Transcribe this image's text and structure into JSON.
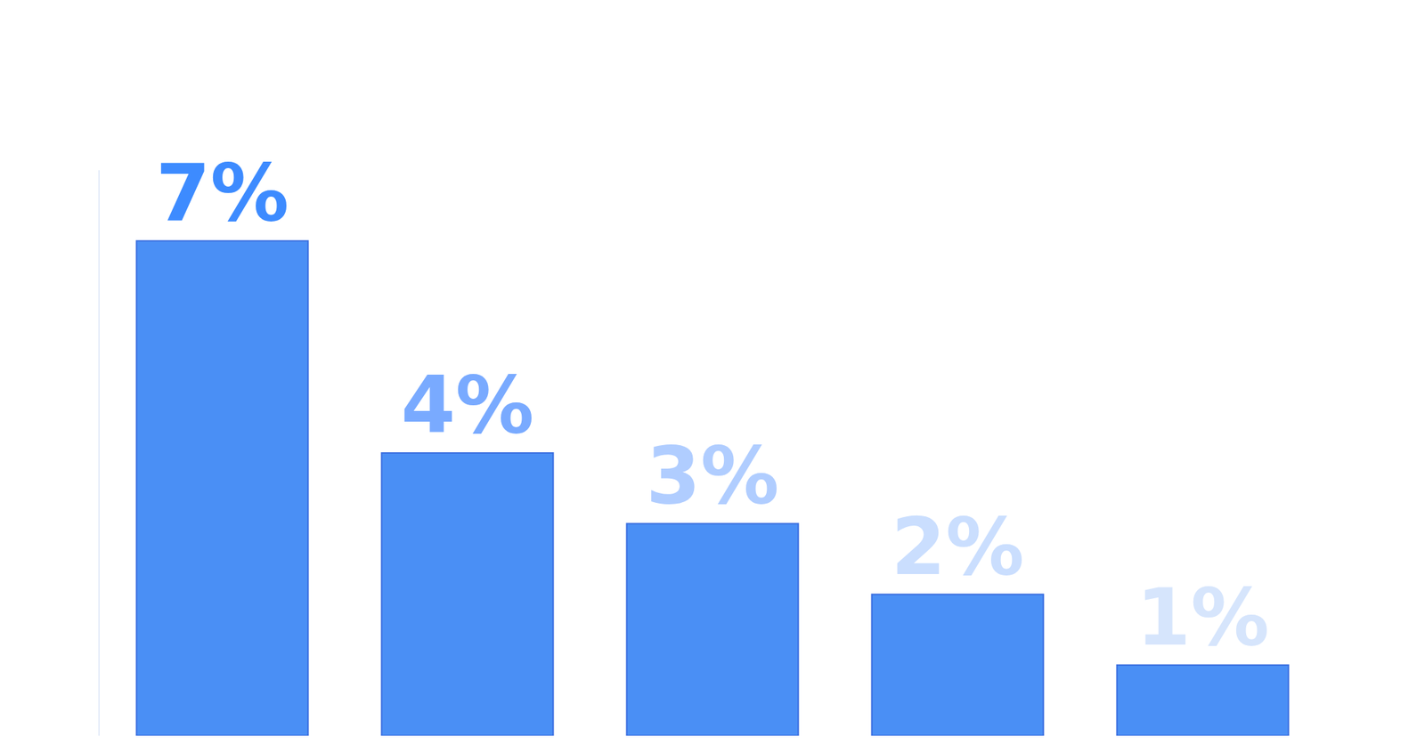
{
  "chart_data": {
    "type": "bar",
    "categories": [
      null,
      null,
      null,
      null,
      null
    ],
    "values": [
      7,
      4,
      3,
      2,
      1
    ],
    "value_labels": [
      "7%",
      "4%",
      "3%",
      "2%",
      "1%"
    ],
    "color": "#4a8ff5",
    "ylim": [
      0,
      8
    ],
    "yticks": [
      0
    ],
    "grid": false,
    "data_labels": true,
    "tick_labels": false
  }
}
